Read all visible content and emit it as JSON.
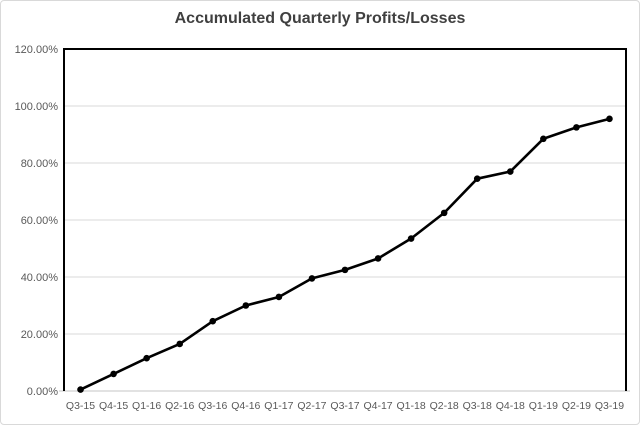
{
  "chart_data": {
    "type": "line",
    "title": "Accumulated Quarterly Profits/Losses",
    "categories": [
      "Q3-15",
      "Q4-15",
      "Q1-16",
      "Q2-16",
      "Q3-16",
      "Q4-16",
      "Q1-17",
      "Q2-17",
      "Q3-17",
      "Q4-17",
      "Q1-18",
      "Q2-18",
      "Q3-18",
      "Q4-18",
      "Q1-19",
      "Q2-19",
      "Q3-19"
    ],
    "values": [
      0.5,
      6,
      11.5,
      16.5,
      24.5,
      30,
      33,
      39.5,
      42.5,
      46.5,
      53.5,
      62.5,
      74.5,
      77,
      88.5,
      92.5,
      95.5
    ],
    "xlabel": "",
    "ylabel": "",
    "ylim": [
      0,
      120
    ],
    "ytick_step": 20,
    "ytick_labels": [
      "0.00%",
      "20.00%",
      "40.00%",
      "60.00%",
      "80.00%",
      "100.00%",
      "120.00%"
    ],
    "grid": true,
    "legend": false,
    "marker": "circle",
    "colors": {
      "series_line": "#000000",
      "marker_fill": "#000000",
      "gridline": "#d9d9d9",
      "plot_border": "#000000",
      "category_axis_line": "#d9d9d9",
      "tick_label": "#595959",
      "title_text": "#404040",
      "frame_border": "#d9d9d9",
      "background": "#ffffff"
    }
  }
}
